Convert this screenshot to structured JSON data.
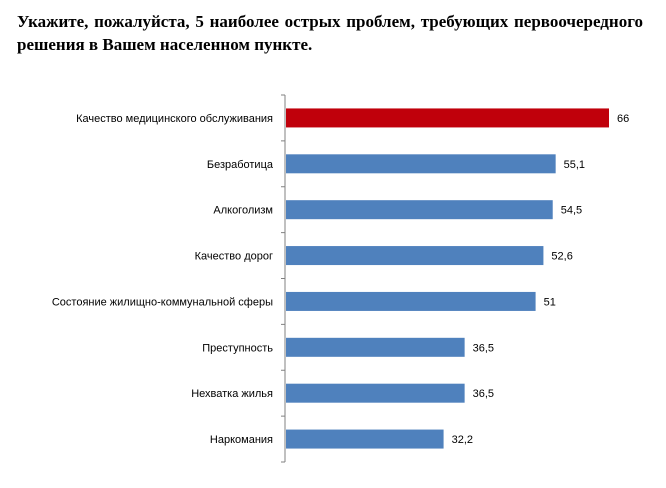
{
  "title": "Укажите, пожалуйста, 5 наиболее острых проблем, требующих первоочередного решения в Вашем населенном пункте.",
  "chart_data": {
    "type": "bar",
    "orientation": "horizontal",
    "title": "Укажите, пожалуйста, 5 наиболее острых проблем, требующих первоочередного решения в Вашем населенном пункте.",
    "categories": [
      "Качество медицинского обслуживания",
      "Безработица",
      "Алкоголизм",
      "Качество дорог",
      "Состояние жилищно-коммунальной сферы",
      "Преступность",
      "Нехватка жилья",
      "Наркомания"
    ],
    "values": [
      66,
      55.1,
      54.5,
      52.6,
      51,
      36.5,
      36.5,
      32.2
    ],
    "value_labels": [
      "66",
      "55,1",
      "54,5",
      "52,6",
      "51",
      "36,5",
      "36,5",
      "32,2"
    ],
    "xlim": [
      0,
      66
    ],
    "grid": false,
    "legend": "none",
    "colors": {
      "highlight": "#C0000B",
      "bar": "#4F81BD",
      "axis": "#808080"
    },
    "highlight_index": 0
  }
}
